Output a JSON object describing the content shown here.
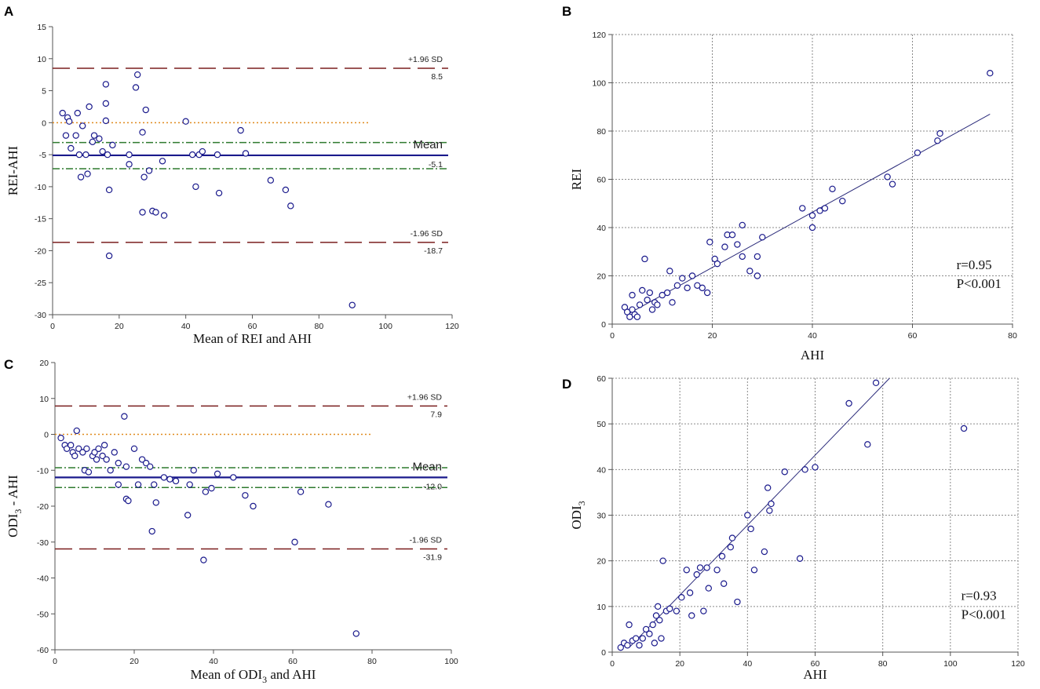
{
  "chart_data": [
    {
      "panel": "A",
      "type": "scatter",
      "subtype": "bland-altman",
      "xlabel": "Mean of REI and AHI",
      "ylabel": "REI-AHI",
      "xlim": [
        0,
        120
      ],
      "ylim": [
        -30,
        15
      ],
      "xticks": [
        0,
        20,
        40,
        60,
        80,
        100,
        120
      ],
      "yticks": [
        15,
        10,
        5,
        0,
        -5,
        -10,
        -15,
        -20,
        -25,
        -30
      ],
      "grid": false,
      "lines": {
        "zero": 0,
        "zero_end": 95,
        "mean": -5.1,
        "mean_label": "Mean",
        "mean_value": "-5.1",
        "ci_upper": -3.1,
        "ci_lower": -7.2,
        "upper_loa": 8.5,
        "upper_label": "+1.96 SD",
        "upper_value": "8.5",
        "lower_loa": -18.7,
        "lower_label": "-1.96 SD",
        "lower_value": "-18.7"
      },
      "points": [
        [
          3,
          1.5
        ],
        [
          4,
          -2
        ],
        [
          4.5,
          0.8
        ],
        [
          5,
          0.2
        ],
        [
          5.5,
          -4
        ],
        [
          7,
          -2
        ],
        [
          7.5,
          1.5
        ],
        [
          8,
          -5
        ],
        [
          8.5,
          -8.5
        ],
        [
          9,
          -0.5
        ],
        [
          10,
          -5
        ],
        [
          10.5,
          -8
        ],
        [
          11,
          2.5
        ],
        [
          12,
          -3
        ],
        [
          12.5,
          -2
        ],
        [
          14,
          -2.5
        ],
        [
          15,
          -4.5
        ],
        [
          16,
          6
        ],
        [
          16,
          3
        ],
        [
          16,
          0.3
        ],
        [
          16.5,
          -5
        ],
        [
          17,
          -10.5
        ],
        [
          17,
          -20.8
        ],
        [
          18,
          -3.5
        ],
        [
          23,
          -5
        ],
        [
          23,
          -6.5
        ],
        [
          25,
          5.5
        ],
        [
          25.5,
          7.5
        ],
        [
          27,
          -1.5
        ],
        [
          27,
          -14
        ],
        [
          27.5,
          -8.5
        ],
        [
          28,
          2
        ],
        [
          29,
          -7.5
        ],
        [
          30,
          -13.8
        ],
        [
          31,
          -14
        ],
        [
          33,
          -6
        ],
        [
          33.5,
          -14.5
        ],
        [
          40,
          0.2
        ],
        [
          42,
          -5
        ],
        [
          43,
          -10
        ],
        [
          44,
          -5
        ],
        [
          45,
          -4.5
        ],
        [
          49.5,
          -5
        ],
        [
          50,
          -11
        ],
        [
          56.5,
          -1.2
        ],
        [
          58,
          -4.8
        ],
        [
          65.5,
          -9
        ],
        [
          70,
          -10.5
        ],
        [
          71.5,
          -13
        ],
        [
          90,
          -28.5
        ]
      ]
    },
    {
      "panel": "B",
      "type": "scatter",
      "subtype": "regression",
      "xlabel": "AHI",
      "ylabel": "REI",
      "xlim": [
        0,
        80
      ],
      "ylim": [
        0,
        120
      ],
      "xticks": [
        0,
        20,
        40,
        60,
        80
      ],
      "yticks": [
        0,
        20,
        40,
        60,
        80,
        100,
        120
      ],
      "grid": true,
      "fit": [
        [
          3,
          4
        ],
        [
          75.5,
          87
        ]
      ],
      "r_label": "r=0.95",
      "p_label": "P<0.001",
      "points": [
        [
          2.5,
          7
        ],
        [
          3,
          5
        ],
        [
          3.5,
          3
        ],
        [
          4,
          6
        ],
        [
          4,
          12
        ],
        [
          4.5,
          4
        ],
        [
          5,
          3
        ],
        [
          5.5,
          8
        ],
        [
          6,
          14
        ],
        [
          6.5,
          27
        ],
        [
          7,
          10
        ],
        [
          7.5,
          13
        ],
        [
          8,
          6
        ],
        [
          8.5,
          9
        ],
        [
          9,
          8
        ],
        [
          10,
          12
        ],
        [
          11,
          13
        ],
        [
          11.5,
          22
        ],
        [
          12,
          9
        ],
        [
          13,
          16
        ],
        [
          14,
          19
        ],
        [
          15,
          15
        ],
        [
          16,
          20
        ],
        [
          17,
          16
        ],
        [
          18,
          15
        ],
        [
          19,
          13
        ],
        [
          19.5,
          34
        ],
        [
          20.5,
          27
        ],
        [
          21,
          25
        ],
        [
          22.5,
          32
        ],
        [
          23,
          37
        ],
        [
          24,
          37
        ],
        [
          25,
          33
        ],
        [
          26,
          28
        ],
        [
          26,
          41
        ],
        [
          27.5,
          22
        ],
        [
          29,
          20
        ],
        [
          29,
          28
        ],
        [
          30,
          36
        ],
        [
          38,
          48
        ],
        [
          40,
          45
        ],
        [
          40,
          40
        ],
        [
          41.5,
          47
        ],
        [
          42.5,
          48
        ],
        [
          44,
          56
        ],
        [
          46,
          51
        ],
        [
          55,
          61
        ],
        [
          56,
          58
        ],
        [
          61,
          71
        ],
        [
          65,
          76
        ],
        [
          65.5,
          79
        ],
        [
          75.5,
          104
        ]
      ]
    },
    {
      "panel": "C",
      "type": "scatter",
      "subtype": "bland-altman",
      "xlabel_main": "Mean of ODI",
      "xlabel_sub": "3",
      "xlabel_rest": " and AHI",
      "ylabel_main": "ODI",
      "ylabel_sub": "3",
      "ylabel_rest": " - AHI",
      "xlim": [
        0,
        100
      ],
      "ylim": [
        -60,
        20
      ],
      "xticks": [
        0,
        20,
        40,
        60,
        80,
        100
      ],
      "yticks": [
        20,
        10,
        0,
        -10,
        -20,
        -30,
        -40,
        -50,
        -60
      ],
      "grid": false,
      "lines": {
        "zero": 0,
        "zero_end": 80,
        "mean": -12.0,
        "mean_label": "Mean",
        "mean_value": "-12.0",
        "ci_upper": -9.3,
        "ci_lower": -14.8,
        "upper_loa": 7.9,
        "upper_label": "+1.96 SD",
        "upper_value": "7.9",
        "lower_loa": -31.9,
        "lower_label": "-1.96 SD",
        "lower_value": "-31.9"
      },
      "points": [
        [
          1.5,
          -1
        ],
        [
          2.5,
          -3
        ],
        [
          3,
          -4
        ],
        [
          4,
          -3
        ],
        [
          4.5,
          -5
        ],
        [
          5,
          -6
        ],
        [
          5.5,
          1
        ],
        [
          6,
          -4
        ],
        [
          7,
          -5
        ],
        [
          7.5,
          -10
        ],
        [
          8,
          -4
        ],
        [
          8.5,
          -10.5
        ],
        [
          9.5,
          -6
        ],
        [
          10,
          -5
        ],
        [
          10.5,
          -7
        ],
        [
          11,
          -4
        ],
        [
          12,
          -6
        ],
        [
          12.5,
          -3
        ],
        [
          13,
          -7
        ],
        [
          14,
          -10
        ],
        [
          15,
          -5
        ],
        [
          16,
          -14
        ],
        [
          16,
          -8
        ],
        [
          17.5,
          5
        ],
        [
          18,
          -18
        ],
        [
          18,
          -9
        ],
        [
          18.5,
          -18.5
        ],
        [
          20,
          -4
        ],
        [
          21,
          -14
        ],
        [
          22,
          -7
        ],
        [
          23,
          -8
        ],
        [
          24,
          -9
        ],
        [
          24.5,
          -27
        ],
        [
          25,
          -14
        ],
        [
          25.5,
          -19
        ],
        [
          27.5,
          -12
        ],
        [
          29,
          -12.5
        ],
        [
          30.5,
          -13
        ],
        [
          33.5,
          -22.5
        ],
        [
          34,
          -14
        ],
        [
          35,
          -10
        ],
        [
          37.5,
          -35
        ],
        [
          38,
          -16
        ],
        [
          39.5,
          -15
        ],
        [
          41,
          -11
        ],
        [
          45,
          -12
        ],
        [
          48,
          -17
        ],
        [
          50,
          -20
        ],
        [
          62,
          -16
        ],
        [
          69,
          -19.5
        ],
        [
          76,
          -55.5
        ],
        [
          60.5,
          -30
        ]
      ]
    },
    {
      "panel": "D",
      "type": "scatter",
      "subtype": "regression",
      "xlabel": "AHI",
      "ylabel_main": "ODI",
      "ylabel_sub": "3",
      "xlim": [
        0,
        120
      ],
      "ylim": [
        0,
        60
      ],
      "xticks": [
        0,
        20,
        40,
        60,
        80,
        100,
        120
      ],
      "yticks": [
        0,
        10,
        20,
        30,
        40,
        50,
        60
      ],
      "grid": true,
      "fit": [
        [
          5,
          1
        ],
        [
          82,
          60
        ]
      ],
      "r_label": "r=0.93",
      "p_label": "P<0.001",
      "points": [
        [
          2.5,
          1
        ],
        [
          3.5,
          2
        ],
        [
          4.5,
          1.5
        ],
        [
          5,
          6
        ],
        [
          6,
          2.5
        ],
        [
          7,
          3
        ],
        [
          8,
          1.5
        ],
        [
          9,
          3
        ],
        [
          10,
          5
        ],
        [
          11,
          4
        ],
        [
          12,
          6
        ],
        [
          12.5,
          2
        ],
        [
          13,
          8
        ],
        [
          13.5,
          10
        ],
        [
          14,
          7
        ],
        [
          14.5,
          3
        ],
        [
          15,
          20
        ],
        [
          16,
          9
        ],
        [
          17,
          9.5
        ],
        [
          19,
          9
        ],
        [
          20.5,
          12
        ],
        [
          22,
          18
        ],
        [
          23,
          13
        ],
        [
          23.5,
          8
        ],
        [
          25,
          17
        ],
        [
          26,
          18.5
        ],
        [
          27,
          9
        ],
        [
          28,
          18.5
        ],
        [
          28.5,
          14
        ],
        [
          31,
          18
        ],
        [
          32.5,
          21
        ],
        [
          33,
          15
        ],
        [
          35,
          23
        ],
        [
          35.5,
          25
        ],
        [
          37,
          11
        ],
        [
          40,
          30
        ],
        [
          41,
          27
        ],
        [
          42,
          18
        ],
        [
          45,
          22
        ],
        [
          46,
          36
        ],
        [
          46.5,
          31
        ],
        [
          47,
          32.5
        ],
        [
          51,
          39.5
        ],
        [
          55.5,
          20.5
        ],
        [
          57,
          40
        ],
        [
          60,
          40.5
        ],
        [
          70,
          54.5
        ],
        [
          75.5,
          45.5
        ],
        [
          78,
          59
        ],
        [
          104,
          49
        ]
      ]
    }
  ]
}
